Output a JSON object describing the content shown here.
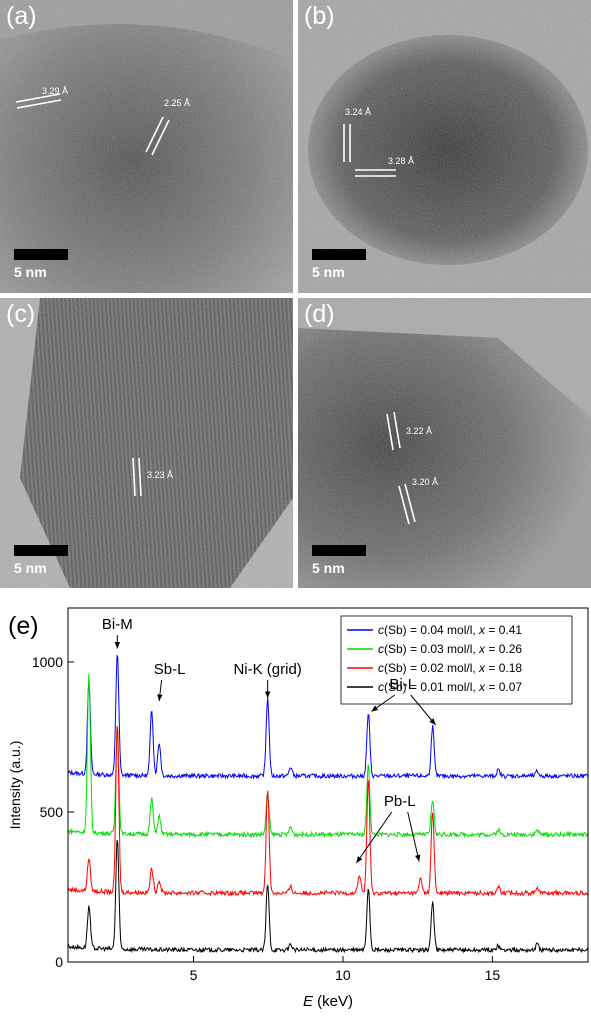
{
  "panels": {
    "a": {
      "label": "(a)",
      "scale": "5 nm",
      "spacings": [
        "3.29 Å",
        "2.25 Å"
      ],
      "tone": "#8a8a8a"
    },
    "b": {
      "label": "(b)",
      "scale": "5 nm",
      "spacings": [
        "3.24 Å",
        "3.28 Å"
      ],
      "tone": "#6f6f6f"
    },
    "c": {
      "label": "(c)",
      "scale": "5 nm",
      "spacings": [
        "3.23 Å"
      ],
      "tone": "#6a6a6a"
    },
    "d": {
      "label": "(d)",
      "scale": "5 nm",
      "spacings": [
        "3.22 Å",
        "3.20 Å"
      ],
      "tone": "#777777"
    }
  },
  "chart_data": {
    "type": "line",
    "panel_label": "(e)",
    "xlabel": "E (keV)",
    "ylabel": "Intensity (a.u.)",
    "xlim": [
      0.8,
      18.2
    ],
    "ylim": [
      0,
      1180
    ],
    "xticks": [
      5,
      10,
      15
    ],
    "yticks": [
      0,
      500,
      1000
    ],
    "legend_position": "top-right",
    "series": [
      {
        "name": "c(Sb) = 0.04 mol/l, x = 0.41",
        "color": "#0000ff",
        "baseline": 620,
        "peaks": [
          [
            1.5,
            310
          ],
          [
            2.45,
            410
          ],
          [
            3.6,
            220
          ],
          [
            3.85,
            110
          ],
          [
            7.48,
            260
          ],
          [
            8.25,
            30
          ],
          [
            10.85,
            210
          ],
          [
            13.0,
            165
          ],
          [
            15.2,
            20
          ],
          [
            16.5,
            15
          ]
        ]
      },
      {
        "name": "c(Sb) = 0.03 mol/l, x = 0.26",
        "color": "#00dd00",
        "baseline": 425,
        "peaks": [
          [
            1.5,
            525
          ],
          [
            2.45,
            360
          ],
          [
            3.6,
            120
          ],
          [
            3.85,
            60
          ],
          [
            7.48,
            135
          ],
          [
            8.25,
            25
          ],
          [
            10.85,
            230
          ],
          [
            13.0,
            115
          ],
          [
            15.2,
            15
          ],
          [
            16.5,
            15
          ]
        ]
      },
      {
        "name": "c(Sb) = 0.02 mol/l, x = 0.18",
        "color": "#ff0000",
        "baseline": 230,
        "peaks": [
          [
            1.5,
            110
          ],
          [
            2.45,
            560
          ],
          [
            3.6,
            80
          ],
          [
            3.85,
            40
          ],
          [
            7.48,
            350
          ],
          [
            8.25,
            20
          ],
          [
            10.55,
            60
          ],
          [
            10.85,
            380
          ],
          [
            12.6,
            50
          ],
          [
            13.0,
            270
          ],
          [
            15.2,
            20
          ],
          [
            16.5,
            20
          ]
        ]
      },
      {
        "name": "c(Sb) = 0.01 mol/l, x = 0.07",
        "color": "#000000",
        "baseline": 40,
        "peaks": [
          [
            1.5,
            140
          ],
          [
            2.45,
            370
          ],
          [
            7.48,
            220
          ],
          [
            8.25,
            20
          ],
          [
            10.85,
            210
          ],
          [
            13.0,
            160
          ],
          [
            15.2,
            15
          ],
          [
            16.5,
            20
          ]
        ]
      }
    ],
    "annotations": [
      {
        "text": "Bi-M",
        "x": 2.45,
        "y": 1110,
        "arrow_to": [
          2.45,
          1045
        ]
      },
      {
        "text": "Sb-L",
        "x": 4.2,
        "y": 960,
        "arrow_to": [
          3.85,
          870
        ]
      },
      {
        "text": "Ni-K (grid)",
        "x": 7.48,
        "y": 960,
        "arrow_to": [
          7.48,
          880
        ]
      },
      {
        "text": "Bi-L",
        "x": 12.0,
        "y": 910,
        "arrow_to": [
          10.95,
          835
        ]
      },
      {
        "text": "Bi-L",
        "x": 12.0,
        "y": 910,
        "arrow_to": [
          13.1,
          790
        ]
      },
      {
        "text": "Pb-L",
        "x": 11.9,
        "y": 520,
        "arrow_to": [
          10.45,
          330
        ]
      },
      {
        "text": "Pb-L",
        "x": 11.9,
        "y": 520,
        "arrow_to": [
          12.55,
          335
        ]
      }
    ]
  }
}
